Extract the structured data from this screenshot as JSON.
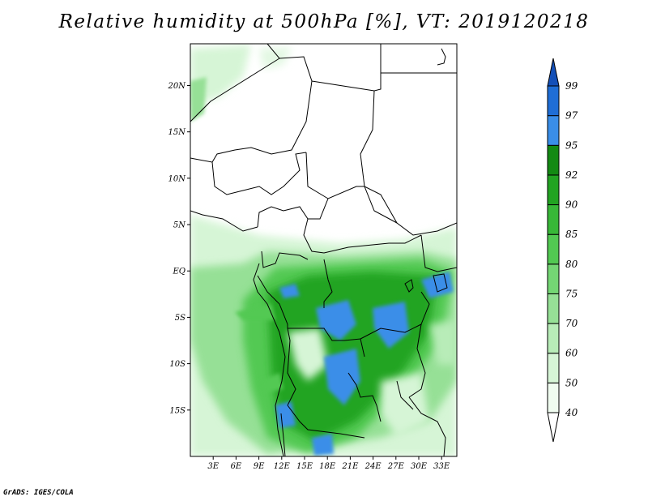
{
  "title": "Relative humidity at 500hPa [%], VT: 2019120218",
  "credit": "GrADS: IGES/COLA",
  "map": {
    "lat_labels": [
      "20N",
      "15N",
      "10N",
      "5N",
      "EQ",
      "5S",
      "10S",
      "15S"
    ],
    "lon_labels": [
      "3E",
      "6E",
      "9E",
      "12E",
      "15E",
      "18E",
      "21E",
      "24E",
      "27E",
      "30E",
      "33E"
    ],
    "lat_range": [
      -20,
      24.5
    ],
    "lon_range": [
      0,
      35
    ]
  },
  "colorbar": {
    "labels": [
      "40",
      "50",
      "60",
      "70",
      "75",
      "80",
      "85",
      "90",
      "92",
      "95",
      "97",
      "99"
    ],
    "colors": [
      "#f0fcf0",
      "#d6f5d6",
      "#b8ecb8",
      "#96e096",
      "#74d674",
      "#52c952",
      "#38b838",
      "#22a422",
      "#138a13",
      "#3a8ee8",
      "#1f6ed6",
      "#1450b8"
    ]
  }
}
